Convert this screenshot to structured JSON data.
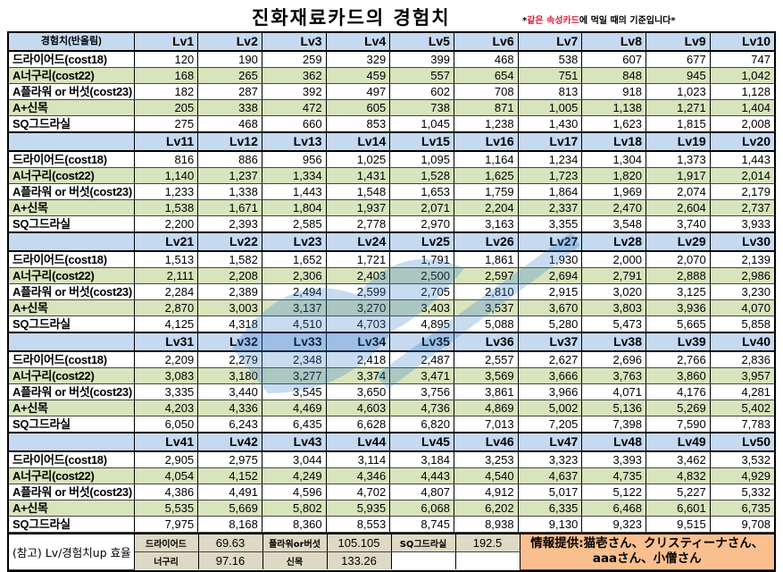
{
  "title": "진화재료카드의 경험치",
  "note": {
    "prefix": "*",
    "highlight": "같은 속성카드",
    "suffix": "에 먹일 때의 기준입니다*",
    "highlight_color": "#e0203a"
  },
  "corner_label": "경험치(반올림)",
  "row_labels": [
    "드라이어드(cost18)",
    "A너구리(cost22)",
    "A플라워 or 버섯(cost23)",
    "A+신목",
    "SQ그드라실"
  ],
  "blocks": [
    {
      "levels": [
        "Lv1",
        "Lv2",
        "Lv3",
        "Lv4",
        "Lv5",
        "Lv6",
        "Lv7",
        "Lv8",
        "Lv9",
        "Lv10"
      ],
      "rows": [
        [
          "120",
          "190",
          "259",
          "329",
          "399",
          "468",
          "538",
          "607",
          "677",
          "747"
        ],
        [
          "168",
          "265",
          "362",
          "459",
          "557",
          "654",
          "751",
          "848",
          "945",
          "1,042"
        ],
        [
          "182",
          "287",
          "392",
          "497",
          "602",
          "708",
          "813",
          "918",
          "1,023",
          "1,128"
        ],
        [
          "205",
          "338",
          "472",
          "605",
          "738",
          "871",
          "1,005",
          "1,138",
          "1,271",
          "1,404"
        ],
        [
          "275",
          "468",
          "660",
          "853",
          "1,045",
          "1,238",
          "1,430",
          "1,623",
          "1,815",
          "2,008"
        ]
      ]
    },
    {
      "levels": [
        "Lv11",
        "Lv12",
        "Lv13",
        "Lv14",
        "Lv15",
        "Lv16",
        "Lv17",
        "Lv18",
        "Lv19",
        "Lv20"
      ],
      "rows": [
        [
          "816",
          "886",
          "956",
          "1,025",
          "1,095",
          "1,164",
          "1,234",
          "1,304",
          "1,373",
          "1,443"
        ],
        [
          "1,140",
          "1,237",
          "1,334",
          "1,431",
          "1,528",
          "1,625",
          "1,723",
          "1,820",
          "1,917",
          "2,014"
        ],
        [
          "1,233",
          "1,338",
          "1,443",
          "1,548",
          "1,653",
          "1,759",
          "1,864",
          "1,969",
          "2,074",
          "2,179"
        ],
        [
          "1,538",
          "1,671",
          "1,804",
          "1,937",
          "2,071",
          "2,204",
          "2,337",
          "2,470",
          "2,604",
          "2,737"
        ],
        [
          "2,200",
          "2,393",
          "2,585",
          "2,778",
          "2,970",
          "3,163",
          "3,355",
          "3,548",
          "3,740",
          "3,933"
        ]
      ]
    },
    {
      "levels": [
        "Lv21",
        "Lv22",
        "Lv23",
        "Lv24",
        "Lv25",
        "Lv26",
        "Lv27",
        "Lv28",
        "Lv29",
        "Lv30"
      ],
      "rows": [
        [
          "1,513",
          "1,582",
          "1,652",
          "1,721",
          "1,791",
          "1,861",
          "1,930",
          "2,000",
          "2,070",
          "2,139"
        ],
        [
          "2,111",
          "2,208",
          "2,306",
          "2,403",
          "2,500",
          "2,597",
          "2,694",
          "2,791",
          "2,888",
          "2,986"
        ],
        [
          "2,284",
          "2,389",
          "2,494",
          "2,599",
          "2,705",
          "2,810",
          "2,915",
          "3,020",
          "3,125",
          "3,230"
        ],
        [
          "2,870",
          "3,003",
          "3,137",
          "3,270",
          "3,403",
          "3,537",
          "3,670",
          "3,803",
          "3,936",
          "4,070"
        ],
        [
          "4,125",
          "4,318",
          "4,510",
          "4,703",
          "4,895",
          "5,088",
          "5,280",
          "5,473",
          "5,665",
          "5,858"
        ]
      ]
    },
    {
      "levels": [
        "Lv31",
        "Lv32",
        "Lv33",
        "Lv34",
        "Lv35",
        "Lv36",
        "Lv37",
        "Lv38",
        "Lv39",
        "Lv40"
      ],
      "rows": [
        [
          "2,209",
          "2,279",
          "2,348",
          "2,418",
          "2,487",
          "2,557",
          "2,627",
          "2,696",
          "2,766",
          "2,836"
        ],
        [
          "3,083",
          "3,180",
          "3,277",
          "3,374",
          "3,471",
          "3,569",
          "3,666",
          "3,763",
          "3,860",
          "3,957"
        ],
        [
          "3,335",
          "3,440",
          "3,545",
          "3,650",
          "3,756",
          "3,861",
          "3,966",
          "4,071",
          "4,176",
          "4,281"
        ],
        [
          "4,203",
          "4,336",
          "4,469",
          "4,603",
          "4,736",
          "4,869",
          "5,002",
          "5,136",
          "5,269",
          "5,402"
        ],
        [
          "6,050",
          "6,243",
          "6,435",
          "6,628",
          "6,820",
          "7,013",
          "7,205",
          "7,398",
          "7,590",
          "7,783"
        ]
      ]
    },
    {
      "levels": [
        "Lv41",
        "Lv42",
        "Lv43",
        "Lv44",
        "Lv45",
        "Lv46",
        "Lv47",
        "Lv48",
        "Lv49",
        "Lv50"
      ],
      "rows": [
        [
          "2,905",
          "2,975",
          "3,044",
          "3,114",
          "3,184",
          "3,253",
          "3,323",
          "3,393",
          "3,462",
          "3,532"
        ],
        [
          "4,054",
          "4,152",
          "4,249",
          "4,346",
          "4,443",
          "4,540",
          "4,637",
          "4,735",
          "4,832",
          "4,929"
        ],
        [
          "4,386",
          "4,491",
          "4,596",
          "4,702",
          "4,807",
          "4,912",
          "5,017",
          "5,122",
          "5,227",
          "5,332"
        ],
        [
          "5,535",
          "5,669",
          "5,802",
          "5,935",
          "6,068",
          "6,202",
          "6,335",
          "6,468",
          "6,601",
          "6,735"
        ],
        [
          "7,975",
          "8,168",
          "8,360",
          "8,553",
          "8,745",
          "8,938",
          "9,130",
          "9,323",
          "9,515",
          "9,708"
        ]
      ]
    }
  ],
  "footer": {
    "ref_label": "(참고) Lv/경험치up 효율",
    "efficiency": [
      [
        {
          "key": "드라이어드",
          "value": "69.63"
        },
        {
          "key": "플라워or버섯",
          "value": "105.105"
        },
        {
          "key": "SQ그드라실",
          "value": "192.5"
        }
      ],
      [
        {
          "key": "너구리",
          "value": "97.16"
        },
        {
          "key": "신목",
          "value": "133.26"
        },
        {
          "key": "",
          "value": ""
        }
      ]
    ],
    "credit_line1": "情報提供:猫壱さん、クリスティーナさん、",
    "credit_line2": "aaaさん、小僧さん"
  },
  "colors": {
    "header_blue": "#c5d9f1",
    "row_green": "#d8e4bc",
    "footer_tan": "#ddd9c4",
    "credit_orange": "#fabf8f"
  }
}
